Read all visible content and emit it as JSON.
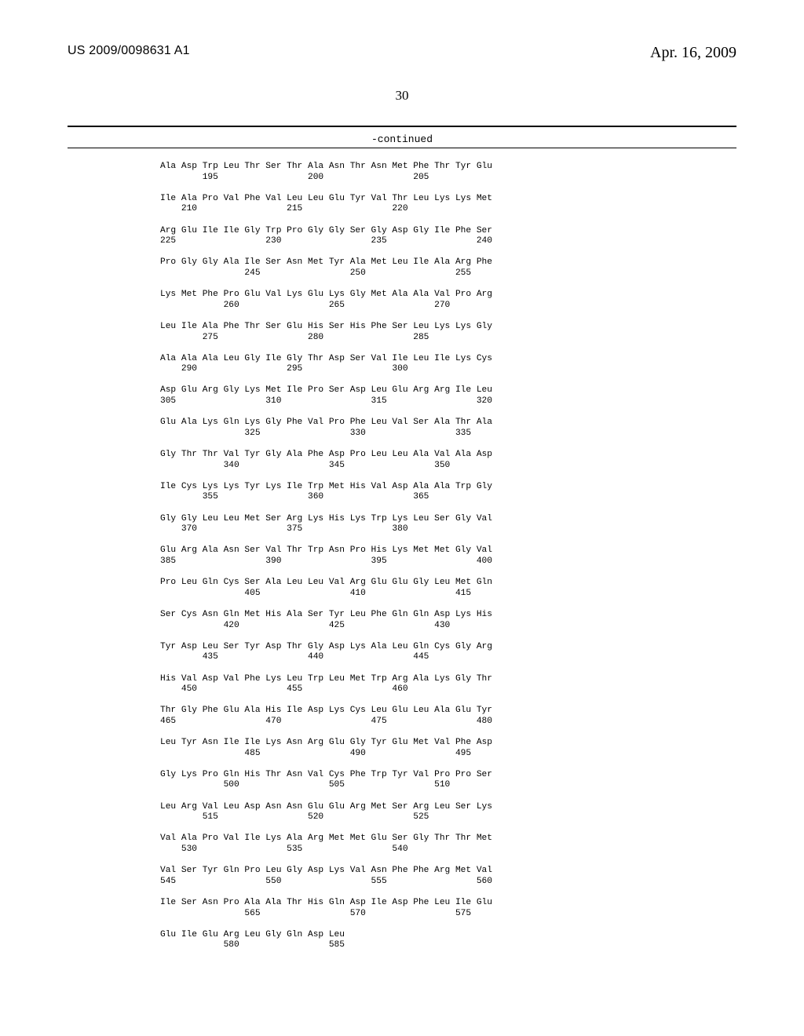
{
  "header": {
    "pubnum": "US 2009/0098631 A1",
    "date": "Apr. 16, 2009",
    "pagenum": "30",
    "continued": "-continued"
  },
  "seq": "Ala Asp Trp Leu Thr Ser Thr Ala Asn Thr Asn Met Phe Thr Tyr Glu\n        195                 200                 205\n\nIle Ala Pro Val Phe Val Leu Leu Glu Tyr Val Thr Leu Lys Lys Met\n    210                 215                 220\n\nArg Glu Ile Ile Gly Trp Pro Gly Gly Ser Gly Asp Gly Ile Phe Ser\n225                 230                 235                 240\n\nPro Gly Gly Ala Ile Ser Asn Met Tyr Ala Met Leu Ile Ala Arg Phe\n                245                 250                 255\n\nLys Met Phe Pro Glu Val Lys Glu Lys Gly Met Ala Ala Val Pro Arg\n            260                 265                 270\n\nLeu Ile Ala Phe Thr Ser Glu His Ser His Phe Ser Leu Lys Lys Gly\n        275                 280                 285\n\nAla Ala Ala Leu Gly Ile Gly Thr Asp Ser Val Ile Leu Ile Lys Cys\n    290                 295                 300\n\nAsp Glu Arg Gly Lys Met Ile Pro Ser Asp Leu Glu Arg Arg Ile Leu\n305                 310                 315                 320\n\nGlu Ala Lys Gln Lys Gly Phe Val Pro Phe Leu Val Ser Ala Thr Ala\n                325                 330                 335\n\nGly Thr Thr Val Tyr Gly Ala Phe Asp Pro Leu Leu Ala Val Ala Asp\n            340                 345                 350\n\nIle Cys Lys Lys Tyr Lys Ile Trp Met His Val Asp Ala Ala Trp Gly\n        355                 360                 365\n\nGly Gly Leu Leu Met Ser Arg Lys His Lys Trp Lys Leu Ser Gly Val\n    370                 375                 380\n\nGlu Arg Ala Asn Ser Val Thr Trp Asn Pro His Lys Met Met Gly Val\n385                 390                 395                 400\n\nPro Leu Gln Cys Ser Ala Leu Leu Val Arg Glu Glu Gly Leu Met Gln\n                405                 410                 415\n\nSer Cys Asn Gln Met His Ala Ser Tyr Leu Phe Gln Gln Asp Lys His\n            420                 425                 430\n\nTyr Asp Leu Ser Tyr Asp Thr Gly Asp Lys Ala Leu Gln Cys Gly Arg\n        435                 440                 445\n\nHis Val Asp Val Phe Lys Leu Trp Leu Met Trp Arg Ala Lys Gly Thr\n    450                 455                 460\n\nThr Gly Phe Glu Ala His Ile Asp Lys Cys Leu Glu Leu Ala Glu Tyr\n465                 470                 475                 480\n\nLeu Tyr Asn Ile Ile Lys Asn Arg Glu Gly Tyr Glu Met Val Phe Asp\n                485                 490                 495\n\nGly Lys Pro Gln His Thr Asn Val Cys Phe Trp Tyr Val Pro Pro Ser\n            500                 505                 510\n\nLeu Arg Val Leu Asp Asn Asn Glu Glu Arg Met Ser Arg Leu Ser Lys\n        515                 520                 525\n\nVal Ala Pro Val Ile Lys Ala Arg Met Met Glu Ser Gly Thr Thr Met\n    530                 535                 540\n\nVal Ser Tyr Gln Pro Leu Gly Asp Lys Val Asn Phe Phe Arg Met Val\n545                 550                 555                 560\n\nIle Ser Asn Pro Ala Ala Thr His Gln Asp Ile Asp Phe Leu Ile Glu\n                565                 570                 575\n\nGlu Ile Glu Arg Leu Gly Gln Asp Leu\n            580                 585"
}
